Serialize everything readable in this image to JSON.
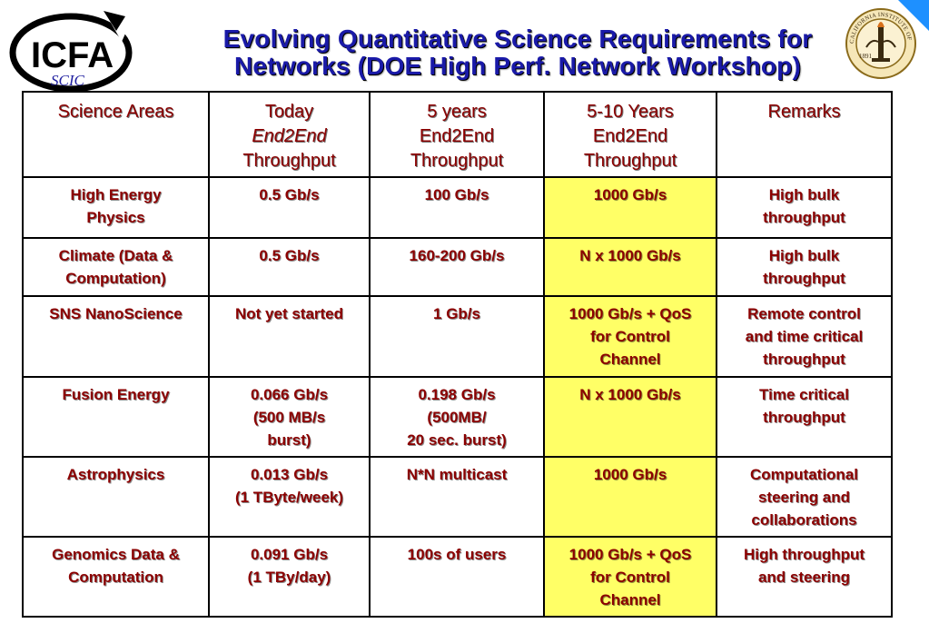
{
  "title": {
    "line1": "Evolving Quantitative Science Requirements for",
    "line2": "Networks (DOE High Perf. Network Workshop)"
  },
  "logos": {
    "icfa_main": "ICFA",
    "icfa_sub": "SCIC",
    "seal_text": "CALIFORNIA INSTITUTE OF TECHNOLOGY",
    "seal_year": "1891"
  },
  "colors": {
    "title": "#1a1aa8",
    "cell_text": "#8b0000",
    "highlight": "#ffff66",
    "corner": "#1e90ff"
  },
  "table": {
    "headers": [
      {
        "lines": [
          "Science Areas"
        ]
      },
      {
        "lines": [
          "Today",
          "End2End",
          "Throughput"
        ]
      },
      {
        "lines": [
          "5 years",
          "End2End",
          "Throughput"
        ]
      },
      {
        "lines": [
          "5-10 Years",
          "End2End",
          "Throughput"
        ]
      },
      {
        "lines": [
          "Remarks"
        ]
      }
    ],
    "rows": [
      {
        "area": [
          "High Energy",
          "Physics"
        ],
        "today": [
          "0.5 Gb/s"
        ],
        "five": [
          "100 Gb/s"
        ],
        "ten": [
          "1000 Gb/s"
        ],
        "remarks": [
          "High bulk",
          "throughput"
        ]
      },
      {
        "area": [
          "Climate (Data &",
          "Computation)"
        ],
        "today": [
          "0.5 Gb/s"
        ],
        "five": [
          "160-200 Gb/s"
        ],
        "ten": [
          "N x 1000 Gb/s"
        ],
        "remarks": [
          "High bulk",
          "throughput"
        ]
      },
      {
        "area": [
          "SNS NanoScience"
        ],
        "today": [
          "Not yet started"
        ],
        "five": [
          "1 Gb/s"
        ],
        "ten": [
          "1000 Gb/s + QoS",
          "for Control",
          "Channel"
        ],
        "remarks": [
          "Remote control",
          "and time critical",
          "throughput"
        ]
      },
      {
        "area": [
          "Fusion Energy"
        ],
        "today": [
          "0.066 Gb/s",
          "(500 MB/s",
          "burst)"
        ],
        "five": [
          "0.198 Gb/s",
          "(500MB/",
          "20 sec. burst)"
        ],
        "ten": [
          "N x 1000 Gb/s"
        ],
        "remarks": [
          "Time critical",
          "throughput"
        ]
      },
      {
        "area": [
          "Astrophysics"
        ],
        "today": [
          "0.013 Gb/s",
          "(1 TByte/week)"
        ],
        "five": [
          "N*N multicast"
        ],
        "ten": [
          "1000 Gb/s"
        ],
        "remarks": [
          "Computational",
          "steering and",
          "collaborations"
        ]
      },
      {
        "area": [
          "Genomics Data &",
          "Computation"
        ],
        "today": [
          "0.091 Gb/s",
          "(1 TBy/day)"
        ],
        "five": [
          "100s of users"
        ],
        "ten": [
          "1000 Gb/s + QoS",
          "for Control",
          "Channel"
        ],
        "remarks": [
          "High throughput",
          "and steering"
        ]
      }
    ]
  }
}
